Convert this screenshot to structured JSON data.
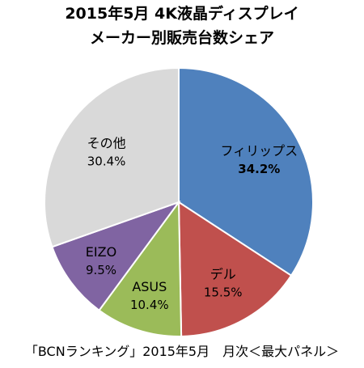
{
  "chart_data": {
    "type": "pie",
    "title_lines": [
      "2015年5月 4K液晶ディスプレイ",
      "メーカー別販売台数シェア"
    ],
    "slices": [
      {
        "name": "フィリップス",
        "value": 34.2,
        "label": "34.2%",
        "color": "#4f81bd"
      },
      {
        "name": "デル",
        "value": 15.5,
        "label": "15.5%",
        "color": "#c0504d"
      },
      {
        "name": "ASUS",
        "value": 10.4,
        "label": "10.4%",
        "color": "#9bbb59"
      },
      {
        "name": "EIZO",
        "value": 9.5,
        "label": "9.5%",
        "color": "#8064a2"
      },
      {
        "name": "その他",
        "value": 30.4,
        "label": "30.4%",
        "color": "#d9d9d9"
      }
    ],
    "legend": "none"
  },
  "footer": "「BCNランキング」2015年5月　月次＜最大パネル＞"
}
